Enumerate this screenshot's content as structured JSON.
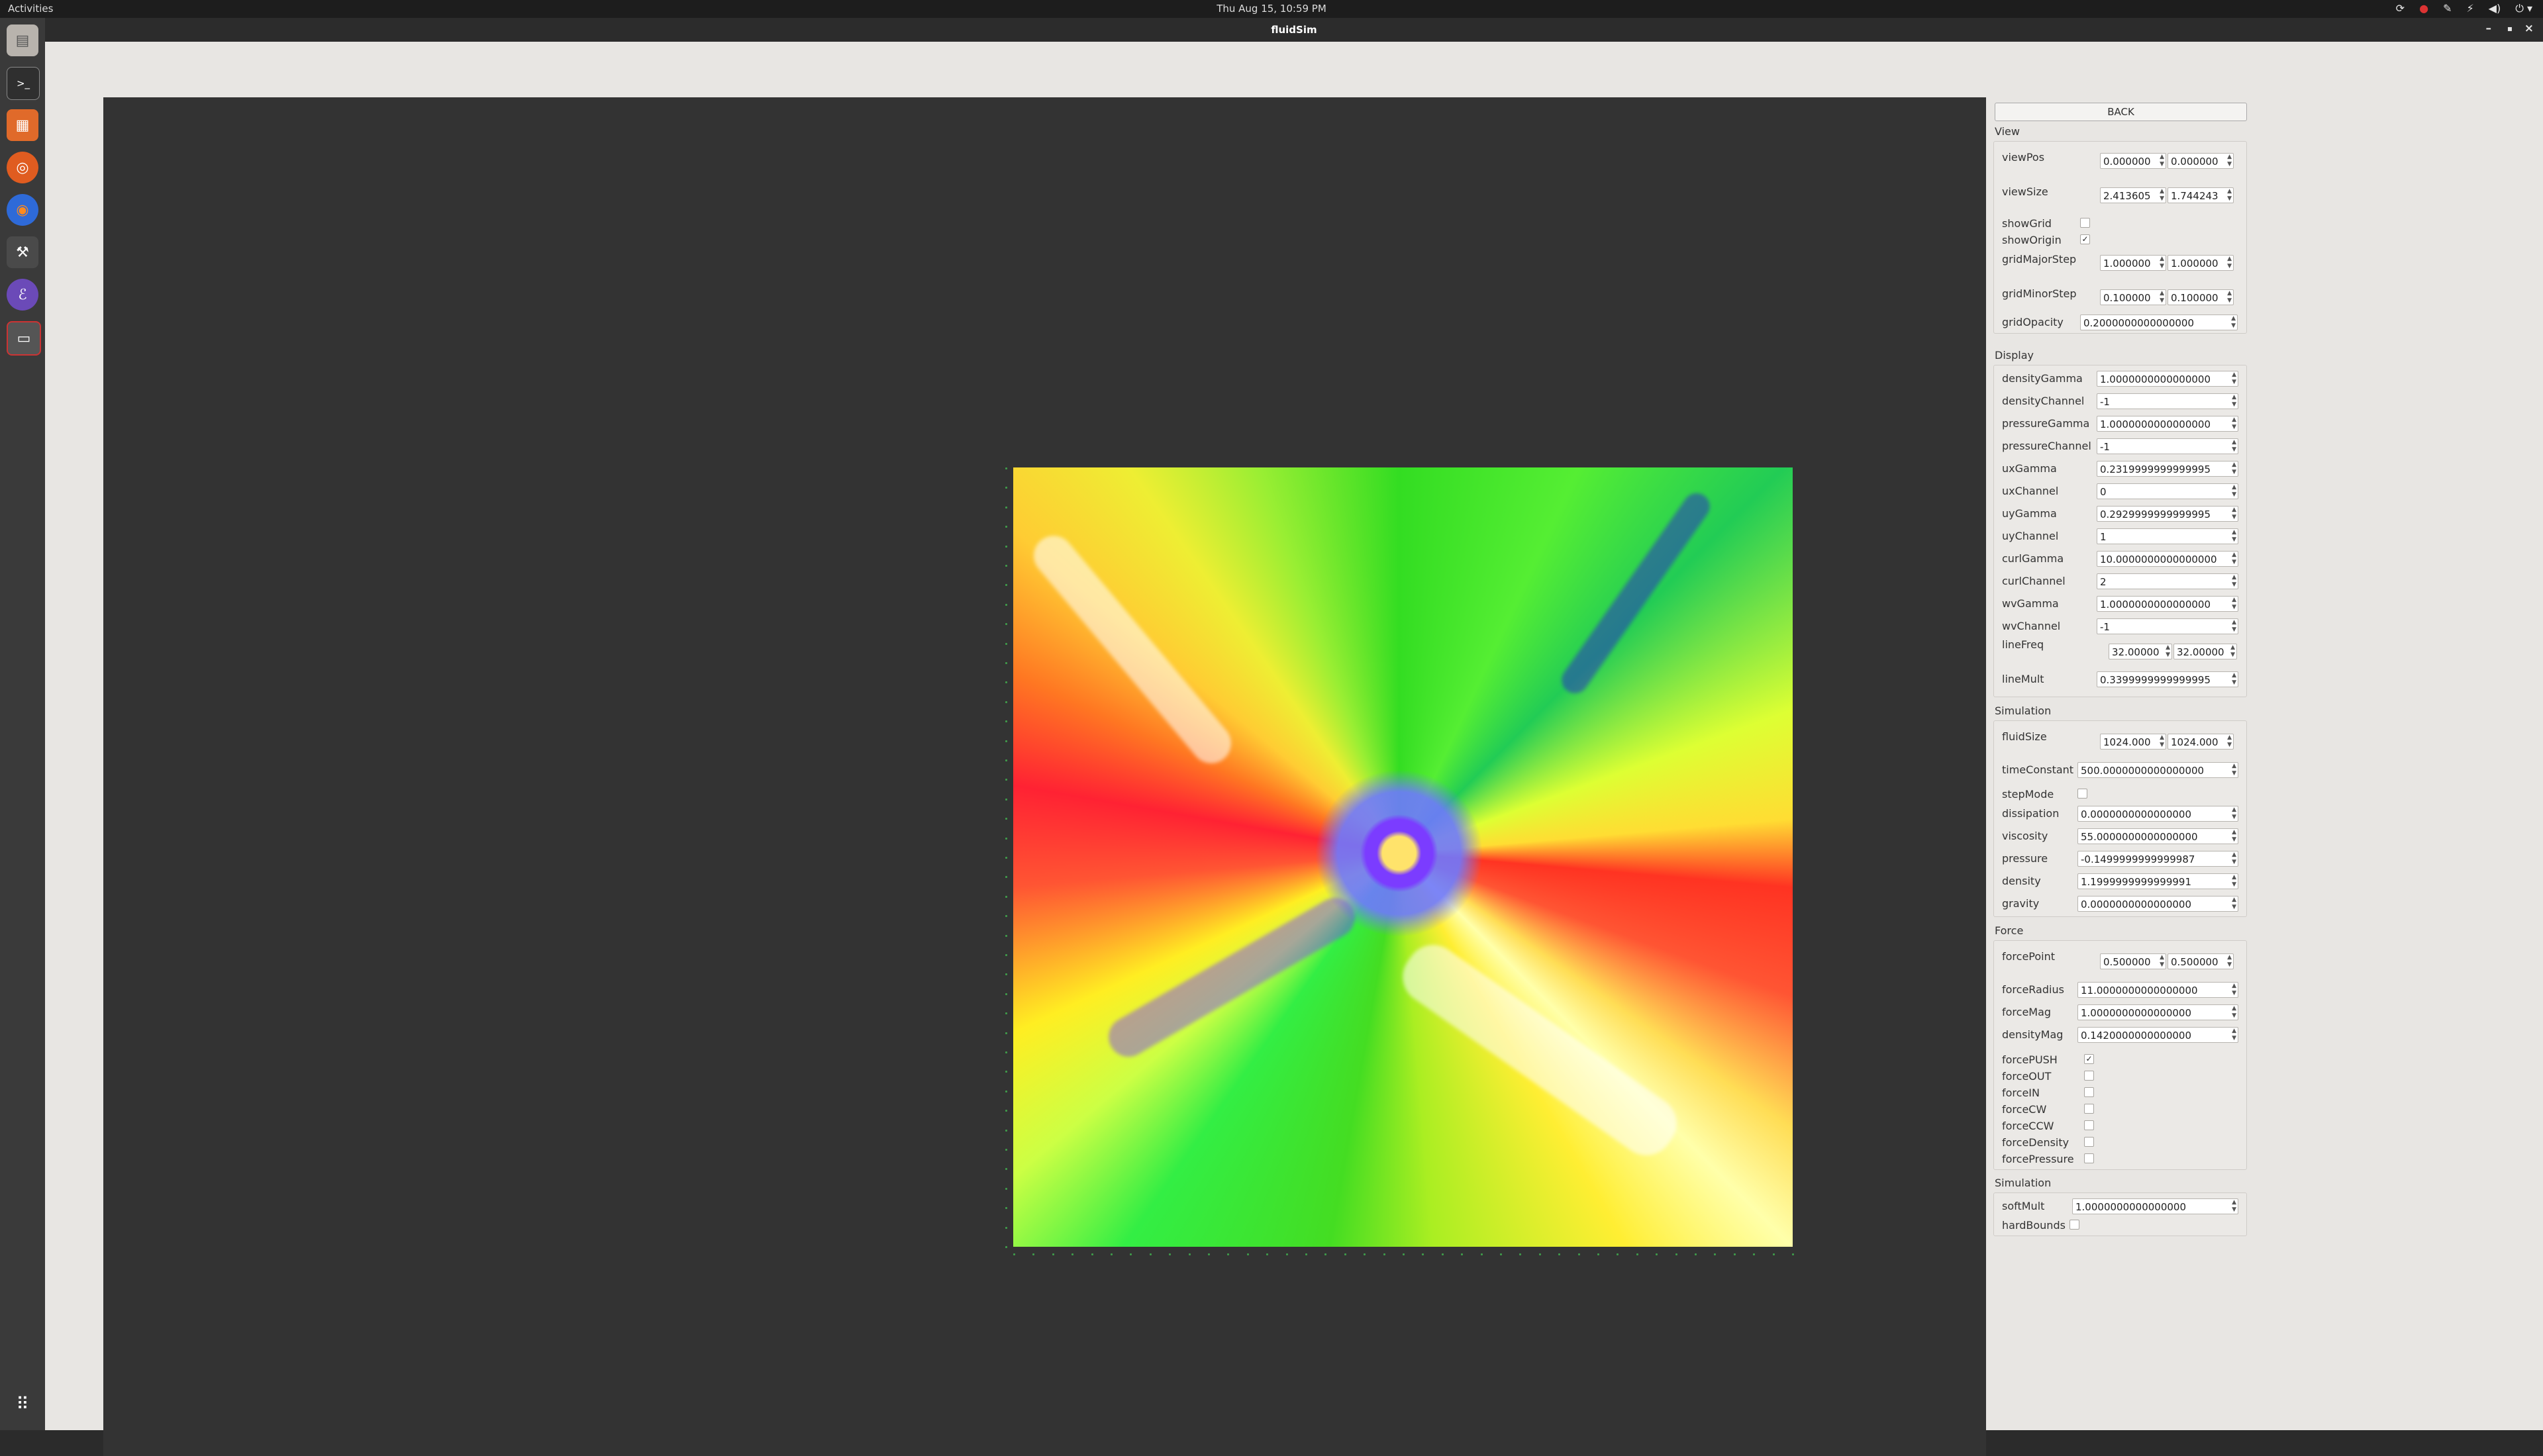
{
  "topbar": {
    "activities": "Activities",
    "clock": "Thu Aug 15, 10:59 PM"
  },
  "window": {
    "title": "fluidSim",
    "minimize": "–",
    "maximize": "▪",
    "close": "×"
  },
  "dock_icons": [
    "files-icon",
    "terminal-icon",
    "app-icon",
    "ubuntu-software-icon",
    "firefox-icon",
    "tools-icon",
    "emacs-icon",
    "fluidsim-icon",
    "show-apps-icon"
  ],
  "panel": {
    "back": "BACK",
    "view": {
      "title": "View",
      "viewPos": {
        "label": "viewPos",
        "a": "0.000000",
        "b": "0.000000"
      },
      "viewSize": {
        "label": "viewSize",
        "a": "2.413605",
        "b": "1.744243"
      },
      "showGrid": {
        "label": "showGrid",
        "checked": false
      },
      "showOrigin": {
        "label": "showOrigin",
        "checked": true
      },
      "gridMajorStep": {
        "label": "gridMajorStep",
        "a": "1.000000",
        "b": "1.000000"
      },
      "gridMinorStep": {
        "label": "gridMinorStep",
        "a": "0.100000",
        "b": "0.100000"
      },
      "gridOpacity": {
        "label": "gridOpacity",
        "value": "0.2000000000000000"
      }
    },
    "display": {
      "title": "Display",
      "rows": [
        {
          "label": "densityGamma",
          "value": "1.0000000000000000"
        },
        {
          "label": "densityChannel",
          "value": "-1"
        },
        {
          "label": "pressureGamma",
          "value": "1.0000000000000000"
        },
        {
          "label": "pressureChannel",
          "value": "-1"
        },
        {
          "label": "uxGamma",
          "value": "0.2319999999999995"
        },
        {
          "label": "uxChannel",
          "value": "0"
        },
        {
          "label": "uyGamma",
          "value": "0.2929999999999995"
        },
        {
          "label": "uyChannel",
          "value": "1"
        },
        {
          "label": "curlGamma",
          "value": "10.0000000000000000"
        },
        {
          "label": "curlChannel",
          "value": "2"
        },
        {
          "label": "wvGamma",
          "value": "1.0000000000000000"
        },
        {
          "label": "wvChannel",
          "value": "-1"
        }
      ],
      "lineFreq": {
        "label": "lineFreq",
        "a": "32.00000",
        "b": "32.00000"
      },
      "lineMult": {
        "label": "lineMult",
        "value": "0.3399999999999995"
      }
    },
    "simulation": {
      "title": "Simulation",
      "fluidSize": {
        "label": "fluidSize",
        "a": "1024.000",
        "b": "1024.000"
      },
      "rows": [
        {
          "label": "timeConstant",
          "value": "500.0000000000000000"
        }
      ],
      "stepMode": {
        "label": "stepMode",
        "checked": false
      },
      "rows2": [
        {
          "label": "dissipation",
          "value": "0.0000000000000000"
        },
        {
          "label": "viscosity",
          "value": "55.0000000000000000"
        },
        {
          "label": "pressure",
          "value": "-0.1499999999999987"
        },
        {
          "label": "density",
          "value": "1.1999999999999991"
        },
        {
          "label": "gravity",
          "value": "0.0000000000000000"
        }
      ]
    },
    "force": {
      "title": "Force",
      "forcePoint": {
        "label": "forcePoint",
        "a": "0.500000",
        "b": "0.500000"
      },
      "rows": [
        {
          "label": "forceRadius",
          "value": "11.0000000000000000"
        },
        {
          "label": "forceMag",
          "value": "1.0000000000000000"
        },
        {
          "label": "densityMag",
          "value": "0.1420000000000000"
        }
      ],
      "checks": [
        {
          "label": "forcePUSH",
          "checked": true
        },
        {
          "label": "forceOUT",
          "checked": false
        },
        {
          "label": "forceIN",
          "checked": false
        },
        {
          "label": "forceCW",
          "checked": false
        },
        {
          "label": "forceCCW",
          "checked": false
        },
        {
          "label": "forceDensity",
          "checked": false
        },
        {
          "label": "forcePressure",
          "checked": false
        }
      ]
    },
    "simulation2": {
      "title": "Simulation",
      "softMult": {
        "label": "softMult",
        "value": "1.0000000000000000"
      },
      "hardBounds": {
        "label": "hardBounds",
        "checked": false
      }
    }
  }
}
